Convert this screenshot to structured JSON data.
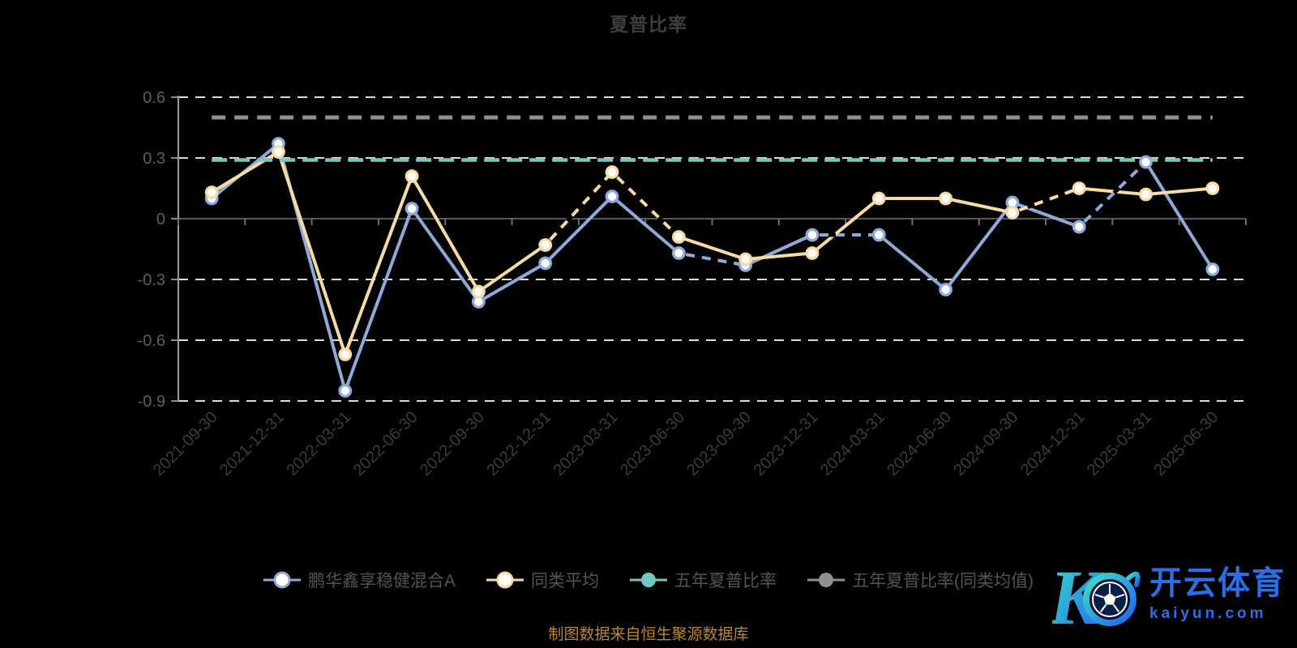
{
  "title": "夏普比率",
  "footer": "制图数据来自恒生聚源数据库",
  "logo": {
    "brand": "开云体育",
    "domain": "kaiyun.com",
    "monogram": "K"
  },
  "colors": {
    "background": "#000000",
    "title_text": "#3e3e3e",
    "y_axis_label": "#5e5e5e",
    "x_axis_label": "#3c3c3c",
    "legend_text": "#545454",
    "footer_text": "#ba882c",
    "gridline": "#dcdcdc",
    "zero_line": "#585858",
    "y_axis_line": "#9a9a9a",
    "logo_blue": "#2b6fe8"
  },
  "chart_data": {
    "type": "line",
    "title": "夏普比率",
    "x": [
      "2021-09-30",
      "2021-12-31",
      "2022-03-31",
      "2022-06-30",
      "2022-09-30",
      "2022-12-31",
      "2023-03-31",
      "2023-06-30",
      "2023-09-30",
      "2023-12-31",
      "2024-03-31",
      "2024-06-30",
      "2024-09-30",
      "2024-12-31",
      "2025-03-31",
      "2025-06-30"
    ],
    "series": [
      {
        "name": "鹏华鑫享稳健混合A",
        "color": "#8fa9d9",
        "line": "solid",
        "marker": "hollow",
        "values": [
          0.1,
          0.37,
          -0.85,
          0.05,
          -0.41,
          -0.22,
          0.11,
          -0.17,
          -0.23,
          -0.08,
          -0.08,
          -0.35,
          0.08,
          -0.04,
          0.28,
          -0.25
        ]
      },
      {
        "name": "同类平均",
        "color": "#f8dba3",
        "line": "solid",
        "marker": "hollow",
        "values": [
          0.13,
          0.33,
          -0.67,
          0.21,
          -0.36,
          -0.13,
          0.23,
          -0.09,
          -0.2,
          -0.17,
          0.1,
          0.1,
          0.03,
          0.15,
          0.12,
          0.15
        ]
      },
      {
        "name": "五年夏普比率",
        "color": "#72c9bd",
        "line": "dashed",
        "marker": "solid",
        "constant_value": 0.29
      },
      {
        "name": "五年夏普比率(同类均值)",
        "color": "#909090",
        "line": "dashed",
        "marker": "solid",
        "constant_value": 0.5
      }
    ],
    "partially_dashed_segments": {
      "0": [
        7,
        9,
        13
      ],
      "1": [
        5,
        6,
        12
      ]
    },
    "ylim": [
      -0.9,
      0.65
    ],
    "yticks": [
      0.6,
      0.3,
      0,
      -0.3,
      -0.6,
      -0.9
    ],
    "gridlines": "dashed",
    "legend_position": "bottom"
  }
}
